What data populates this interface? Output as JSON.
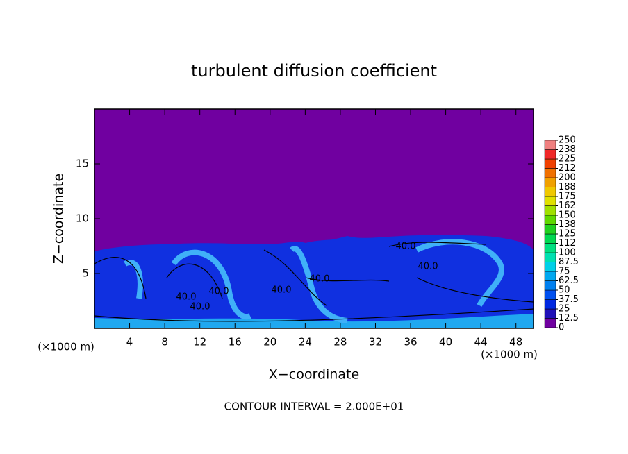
{
  "chart_data": {
    "type": "contour",
    "title": "turbulent diffusion coefficient",
    "x_label": "X−coordinate",
    "y_label": "Z−coordinate",
    "x_unit_left": "(×1000 m)",
    "x_unit_right": "(×1000 m)",
    "footer": "CONTOUR INTERVAL = 2.000E+01",
    "xlim": [
      0,
      50
    ],
    "xticks": [
      4,
      8,
      12,
      16,
      20,
      24,
      28,
      32,
      36,
      40,
      44,
      48
    ],
    "ylim": [
      0,
      20
    ],
    "yticks": [
      5,
      10,
      15
    ],
    "contour_labels": [
      "40.0",
      "40.0",
      "40.0",
      "40.0",
      "40.0",
      "40.0",
      "40.0"
    ],
    "colorbar": {
      "ticks": [
        0,
        12.5,
        25,
        37.5,
        50,
        62.5,
        75,
        87.5,
        100,
        {
          "value": 112.5,
          "label": "112"
        },
        125,
        {
          "value": 137.5,
          "label": "138"
        },
        150,
        {
          "value": 162.5,
          "label": "162"
        },
        175,
        {
          "value": 187.5,
          "label": "188"
        },
        200,
        {
          "value": 212.5,
          "label": "212"
        },
        225,
        {
          "value": 237.5,
          "label": "238"
        },
        250
      ],
      "colors": [
        "#7000a0",
        "#2010b8",
        "#0028e0",
        "#0050f0",
        "#0080f0",
        "#00a8f0",
        "#00d0e8",
        "#00e0b0",
        "#00e080",
        "#00d850",
        "#20d020",
        "#60d800",
        "#a0e000",
        "#e0e000",
        "#f0c800",
        "#f0a000",
        "#f07000",
        "#f04000",
        "#f02828",
        "#f08080"
      ]
    }
  }
}
